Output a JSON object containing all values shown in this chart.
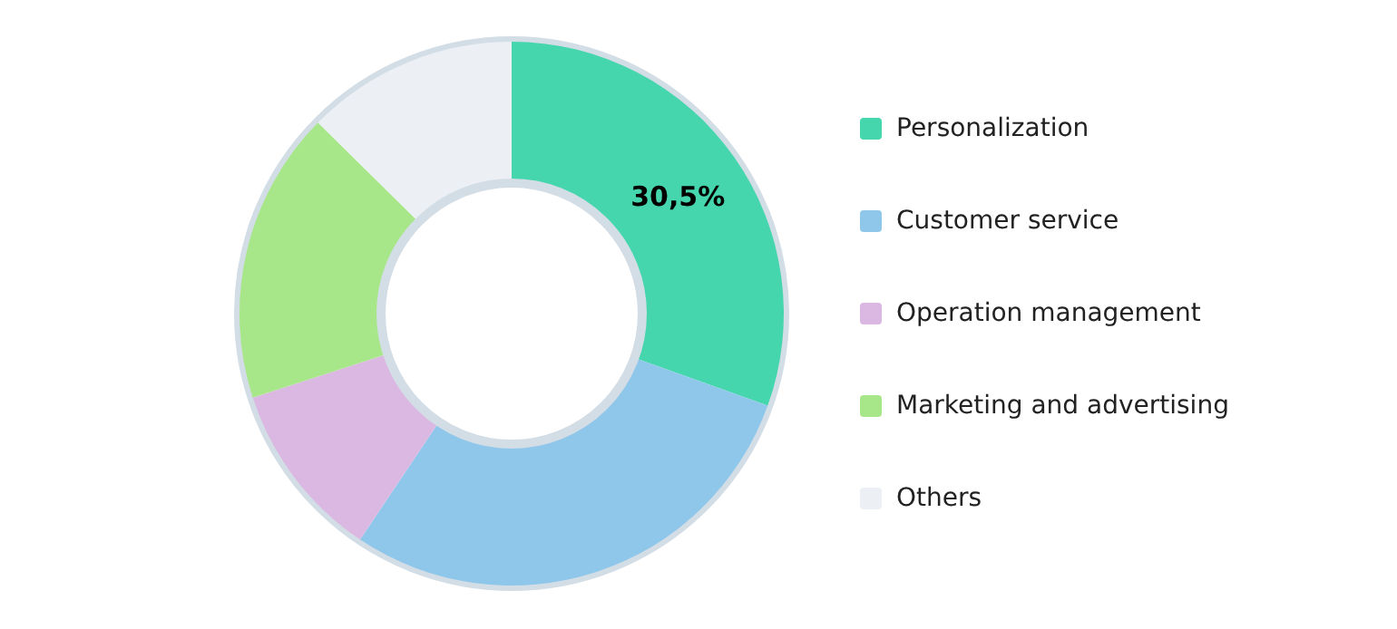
{
  "chart_data": {
    "type": "donut",
    "categories": [
      "Personalization",
      "Customer service",
      "Operation management",
      "Marketing and advertising",
      "Others"
    ],
    "values": [
      30.5,
      28.9,
      10.6,
      17.4,
      12.6
    ],
    "colors": [
      "#46d6ae",
      "#8fc7ea",
      "#dbb8e2",
      "#a8e68a",
      "#eceff4"
    ],
    "value_labels": [
      "30,5%",
      null,
      null,
      null,
      null
    ],
    "legend": "right"
  }
}
